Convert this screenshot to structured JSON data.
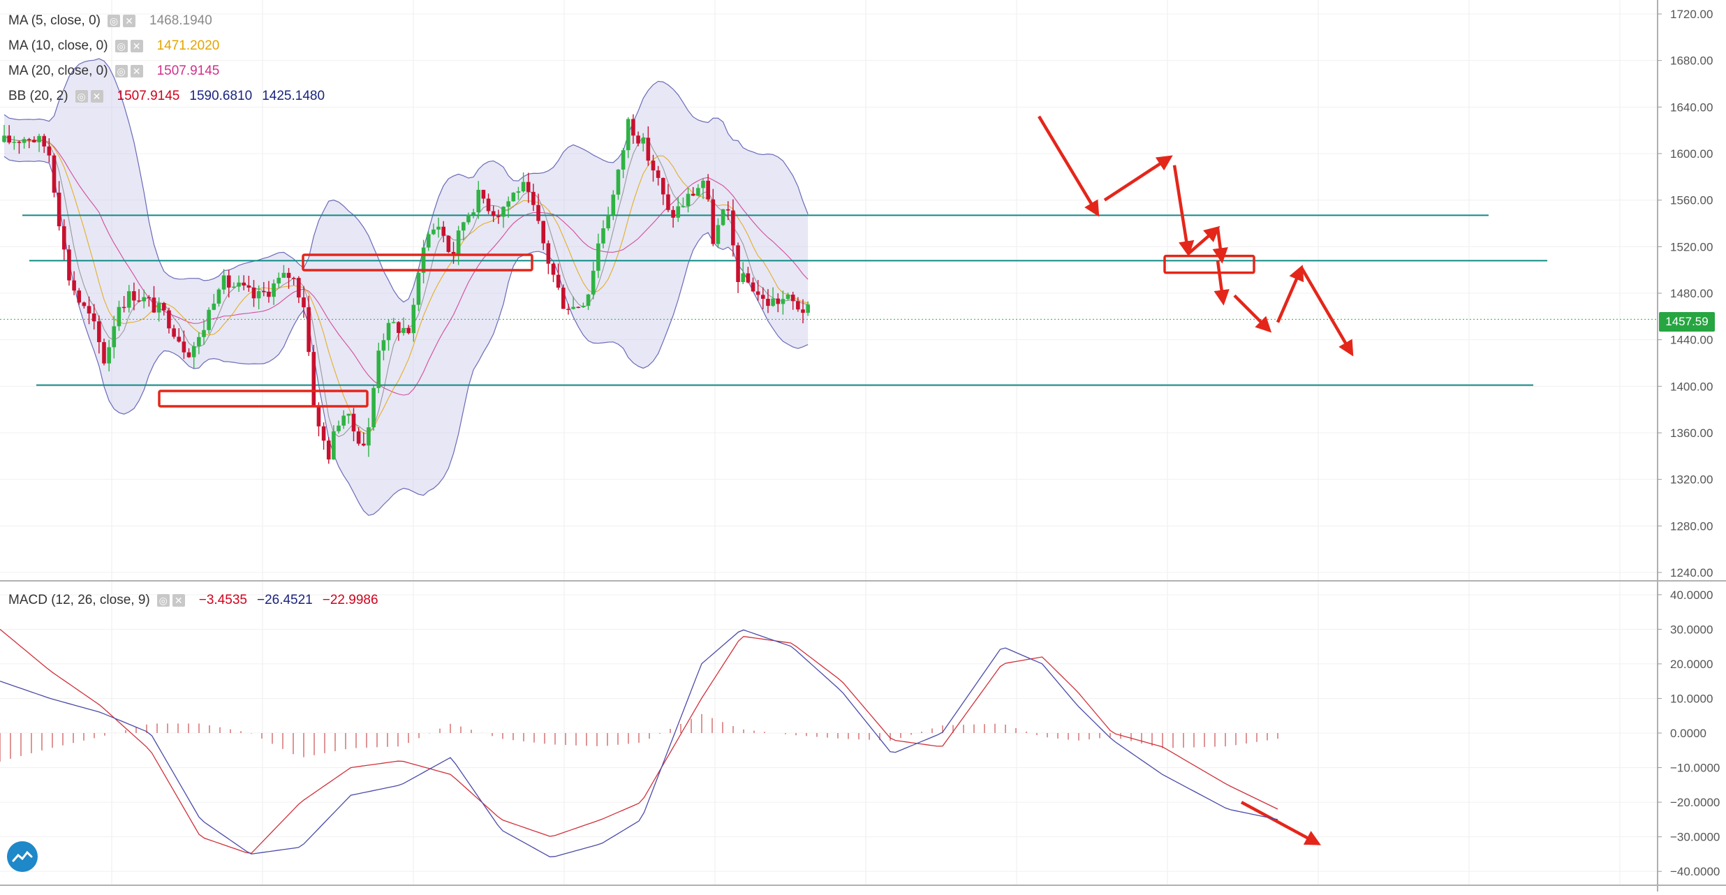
{
  "legends": [
    {
      "label": "MA (5, close, 0)",
      "values": [
        "1468.1940"
      ],
      "colors": [
        "#8a8a8a"
      ]
    },
    {
      "label": "MA (10, close, 0)",
      "values": [
        "1471.2020"
      ],
      "colors": [
        "#e3a400"
      ]
    },
    {
      "label": "MA (20, close, 0)",
      "values": [
        "1507.9145"
      ],
      "colors": [
        "#d0308a"
      ]
    },
    {
      "label": "BB (20, 2)",
      "values": [
        "1507.9145",
        "1590.6810",
        "1425.1480"
      ],
      "colors": [
        "#d0021b",
        "#1a237e",
        "#1a237e"
      ]
    }
  ],
  "macd_legend": {
    "label": "MACD (12, 26, close, 9)",
    "values": [
      "−3.4535",
      "−26.4521",
      "−22.9986"
    ],
    "colors": [
      "#d0021b",
      "#1a237e",
      "#d0021b"
    ]
  },
  "current_price": "1457.59",
  "colors": {
    "up": "#2fb344",
    "down": "#c8102e",
    "band_fill": "#c9c9ea",
    "band_line": "#6a6ab8",
    "level_line": "#0f8a84",
    "annotation": "#e4261a",
    "macd_line": "#4a4aa8",
    "signal_line": "#d0303a"
  },
  "chart_data": [
    {
      "type": "candlestick",
      "title": "",
      "y_ticks": [
        "1720.00",
        "1680.00",
        "1640.00",
        "1600.00",
        "1560.00",
        "1520.00",
        "1480.00",
        "1440.00",
        "1400.00",
        "1360.00",
        "1320.00",
        "1280.00",
        "1240.00"
      ],
      "ylim": [
        1234,
        1732
      ],
      "n_bars": 170,
      "series": [
        {
          "name": "MA (5, close, 0)",
          "values": []
        },
        {
          "name": "MA (10, close, 0)",
          "values": []
        },
        {
          "name": "MA (20, close, 0)",
          "values": []
        }
      ],
      "path_anchors": [
        [
          0,
          1610
        ],
        [
          8,
          1615
        ],
        [
          14,
          1605
        ],
        [
          20,
          1498
        ],
        [
          24,
          1472
        ],
        [
          28,
          1455
        ],
        [
          32,
          1420
        ],
        [
          36,
          1470
        ],
        [
          41,
          1480
        ],
        [
          47,
          1470
        ],
        [
          52,
          1458
        ],
        [
          58,
          1430
        ],
        [
          62,
          1440
        ],
        [
          68,
          1490
        ],
        [
          74,
          1485
        ],
        [
          80,
          1475
        ],
        [
          86,
          1488
        ],
        [
          91,
          1497
        ],
        [
          95,
          1472
        ],
        [
          99,
          1368
        ],
        [
          103,
          1342
        ],
        [
          107,
          1380
        ],
        [
          111,
          1362
        ],
        [
          115,
          1348
        ],
        [
          119,
          1440
        ],
        [
          123,
          1452
        ],
        [
          129,
          1448
        ],
        [
          133,
          1525
        ],
        [
          138,
          1540
        ],
        [
          142,
          1510
        ],
        [
          146,
          1545
        ],
        [
          151,
          1565
        ],
        [
          156,
          1548
        ],
        [
          160,
          1560
        ],
        [
          164,
          1574
        ],
        [
          168,
          1551
        ],
        [
          172,
          1513
        ],
        [
          177,
          1473
        ],
        [
          181,
          1468
        ],
        [
          185,
          1478
        ],
        [
          189,
          1530
        ],
        [
          194,
          1570
        ],
        [
          198,
          1628
        ],
        [
          202,
          1612
        ],
        [
          207,
          1580
        ],
        [
          211,
          1545
        ],
        [
          215,
          1556
        ],
        [
          219,
          1568
        ],
        [
          222,
          1578
        ],
        [
          225,
          1525
        ],
        [
          229,
          1555
        ],
        [
          233,
          1492
        ],
        [
          237,
          1488
        ],
        [
          241,
          1472
        ],
        [
          248,
          1475
        ],
        [
          255,
          1464
        ]
      ],
      "horizontal_levels": [
        1547,
        1508,
        1401
      ],
      "bollinger": {
        "upper_points": [],
        "lower_points": []
      }
    },
    {
      "type": "macd",
      "title": "",
      "y_ticks": [
        "40.0000",
        "30.0000",
        "20.0000",
        "10.0000",
        "0.0000",
        "−10.0000",
        "−20.0000",
        "−30.0000",
        "−40.0000"
      ],
      "ylim": [
        -44,
        44
      ],
      "macd_anchors": [
        [
          0,
          15
        ],
        [
          10,
          10
        ],
        [
          20,
          6
        ],
        [
          30,
          0
        ],
        [
          40,
          -25
        ],
        [
          50,
          -35
        ],
        [
          60,
          -33
        ],
        [
          70,
          -18
        ],
        [
          80,
          -15
        ],
        [
          90,
          -7
        ],
        [
          100,
          -28
        ],
        [
          110,
          -36
        ],
        [
          120,
          -32
        ],
        [
          128,
          -25
        ],
        [
          140,
          20
        ],
        [
          148,
          30
        ],
        [
          158,
          25
        ],
        [
          168,
          12
        ],
        [
          178,
          -6
        ],
        [
          188,
          0
        ],
        [
          200,
          25
        ],
        [
          208,
          20
        ],
        [
          215,
          8
        ],
        [
          222,
          -2
        ],
        [
          232,
          -12
        ],
        [
          245,
          -22
        ],
        [
          255,
          -25
        ]
      ],
      "signal_anchors": [
        [
          0,
          30
        ],
        [
          10,
          18
        ],
        [
          20,
          8
        ],
        [
          30,
          -5
        ],
        [
          40,
          -30
        ],
        [
          50,
          -35
        ],
        [
          60,
          -20
        ],
        [
          70,
          -10
        ],
        [
          80,
          -8
        ],
        [
          90,
          -12
        ],
        [
          100,
          -25
        ],
        [
          110,
          -30
        ],
        [
          120,
          -25
        ],
        [
          128,
          -20
        ],
        [
          140,
          10
        ],
        [
          148,
          28
        ],
        [
          158,
          26
        ],
        [
          168,
          15
        ],
        [
          178,
          -2
        ],
        [
          188,
          -4
        ],
        [
          200,
          20
        ],
        [
          208,
          22
        ],
        [
          215,
          12
        ],
        [
          222,
          0
        ],
        [
          232,
          -4
        ],
        [
          245,
          -15
        ],
        [
          255,
          -22
        ]
      ]
    }
  ]
}
